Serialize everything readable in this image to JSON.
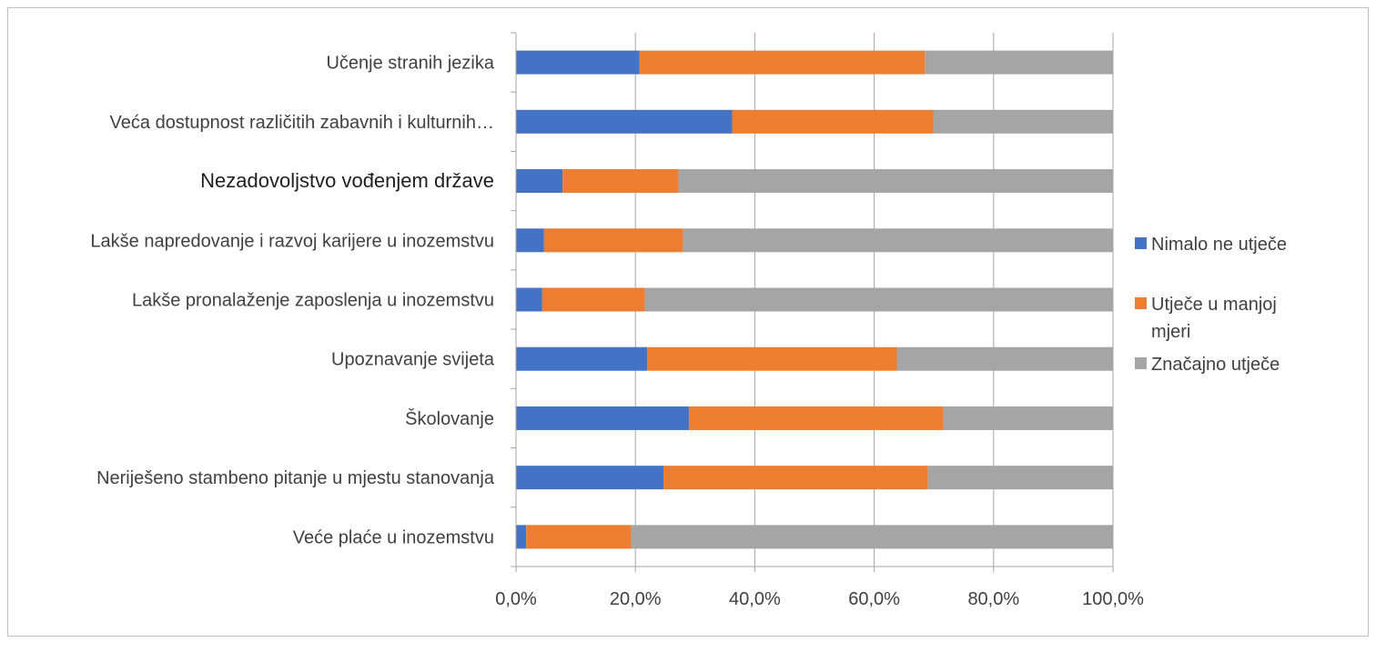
{
  "chart_data": {
    "type": "bar",
    "orientation": "horizontal",
    "stacked": "percent",
    "categories": [
      "Učenje stranih jezika",
      "Veća dostupnost različitih zabavnih i kulturnih…",
      "Nezadovoljstvo vođenjem države",
      "Lakše napredovanje i razvoj karijere u inozemstvu",
      "Lakše pronalaženje zaposlenja u inozemstvu",
      "Upoznavanje svijeta",
      "Školovanje",
      "Neriješeno stambeno pitanje u mjestu stanovanja",
      "Veće plaće u inozemstvu"
    ],
    "series": [
      {
        "name": "Nimalo ne utječe",
        "color": "#4472C4",
        "values": [
          20.7,
          36.2,
          7.8,
          4.7,
          4.4,
          22.0,
          29.0,
          24.7,
          1.7
        ]
      },
      {
        "name": "Utječe u manjoj mjeri",
        "color": "#ED7D31",
        "values": [
          47.8,
          33.7,
          19.4,
          23.3,
          17.2,
          41.8,
          42.6,
          44.3,
          17.6
        ]
      },
      {
        "name": "Značajno utječe",
        "color": "#A5A5A5",
        "values": [
          31.5,
          30.1,
          72.8,
          72.0,
          78.4,
          36.2,
          28.4,
          31.0,
          80.7
        ]
      }
    ],
    "xlim": [
      0,
      100
    ],
    "xticks": [
      "0,0%",
      "20,0%",
      "40,0%",
      "60,0%",
      "80,0%",
      "100,0%"
    ],
    "grid": "vertical",
    "legend_position": "right",
    "legend_lines": [
      [
        "Nimalo ne utječe"
      ],
      [
        "Utječe u manjoj",
        "mjeri"
      ],
      [
        "Značajno utječe"
      ]
    ]
  }
}
